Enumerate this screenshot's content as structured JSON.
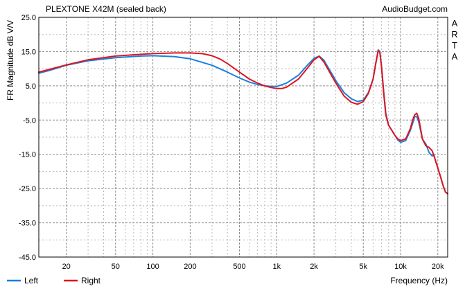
{
  "chart_data": {
    "type": "line",
    "title": "PLEXTONE X42M (sealed back)",
    "source": "AudioBudget.com",
    "side_label": "ARTA",
    "ylabel": "FR Magnitude dB V/V",
    "xlabel": "Frequency (Hz)",
    "x_scale": "log",
    "xlim": [
      12,
      24000
    ],
    "ylim": [
      -45,
      25
    ],
    "y_ticks": [
      25.0,
      15.0,
      5.0,
      -5.0,
      -15.0,
      -25.0,
      -35.0,
      -45.0
    ],
    "y_tick_labels": [
      "25.0",
      "15.0",
      "5.0",
      "-5.0",
      "-15.0",
      "-25.0",
      "-35.0",
      "-45.0"
    ],
    "x_ticks": [
      20,
      50,
      100,
      200,
      500,
      1000,
      2000,
      5000,
      10000,
      20000
    ],
    "x_tick_labels": [
      "20",
      "50",
      "100",
      "200",
      "500",
      "1k",
      "2k",
      "5k",
      "10k",
      "20k"
    ],
    "grid": true,
    "legend_position": "bottom-left",
    "series": [
      {
        "name": "Left",
        "color": "#1a7fe0",
        "x": [
          12,
          15,
          20,
          30,
          50,
          80,
          100,
          150,
          200,
          300,
          400,
          500,
          600,
          700,
          800,
          900,
          1000,
          1200,
          1500,
          1800,
          2000,
          2200,
          2400,
          3000,
          3500,
          4000,
          4500,
          5000,
          5500,
          6000,
          6300,
          6600,
          6800,
          7000,
          7300,
          7600,
          8000,
          8500,
          9000,
          9500,
          10000,
          11000,
          12000,
          12500,
          13000,
          13500,
          14000,
          14500,
          15000,
          16000,
          17000,
          18000,
          18500,
          19000,
          20000,
          21000,
          22000,
          23000,
          24000
        ],
        "y": [
          8.7,
          9.6,
          11.0,
          12.3,
          13.2,
          13.7,
          13.8,
          13.5,
          12.9,
          11.0,
          9.0,
          7.3,
          6.1,
          5.4,
          5.0,
          4.8,
          4.8,
          5.8,
          8.1,
          11.3,
          13.0,
          13.7,
          12.5,
          6.5,
          3.0,
          1.2,
          0.4,
          0.8,
          3.0,
          7.0,
          11.5,
          15.5,
          15.0,
          11.0,
          3.5,
          -3.0,
          -6.5,
          -8.0,
          -9.5,
          -10.8,
          -11.5,
          -11.0,
          -8.0,
          -6.0,
          -4.0,
          -4.0,
          -5.5,
          -8.0,
          -10.5,
          -12.0,
          -14.5,
          -15.5,
          -15.0,
          -16.5,
          -19.0,
          -21.5,
          -24.0,
          -26.0,
          -26.5
        ]
      },
      {
        "name": "Right",
        "color": "#e0141e",
        "x": [
          12,
          15,
          20,
          30,
          50,
          80,
          100,
          150,
          200,
          250,
          300,
          350,
          400,
          500,
          600,
          700,
          800,
          900,
          1000,
          1100,
          1200,
          1500,
          1800,
          2000,
          2200,
          2400,
          3000,
          3500,
          4000,
          4500,
          5000,
          5500,
          6000,
          6300,
          6600,
          6800,
          7000,
          7300,
          7600,
          8000,
          8500,
          9000,
          9500,
          10000,
          11000,
          12000,
          12500,
          13000,
          13500,
          14000,
          14500,
          15000,
          16000,
          17000,
          18000,
          19000,
          20000,
          21000,
          22000,
          23000,
          24000
        ],
        "y": [
          9.0,
          9.9,
          11.1,
          12.6,
          13.7,
          14.2,
          14.4,
          14.6,
          14.6,
          14.4,
          13.8,
          12.8,
          11.5,
          9.0,
          7.0,
          5.8,
          5.0,
          4.5,
          4.2,
          4.2,
          4.6,
          7.0,
          10.5,
          12.6,
          13.6,
          12.0,
          5.8,
          2.0,
          0.2,
          -0.4,
          0.4,
          2.8,
          7.0,
          11.5,
          15.3,
          14.8,
          10.8,
          3.0,
          -3.5,
          -6.5,
          -8.0,
          -9.5,
          -10.5,
          -11.0,
          -10.5,
          -7.5,
          -5.0,
          -3.5,
          -3.0,
          -4.5,
          -7.5,
          -10.5,
          -12.5,
          -13.0,
          -14.0,
          -16.5,
          -19.0,
          -21.5,
          -24.0,
          -26.0,
          -26.5
        ]
      }
    ]
  }
}
